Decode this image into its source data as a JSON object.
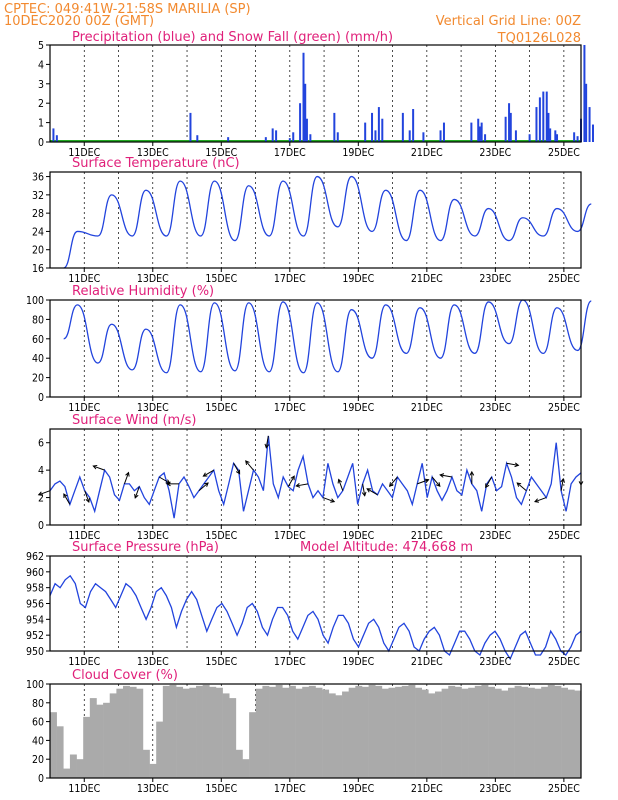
{
  "header": {
    "left_line1": "CPTEC:   049:41W-21:58S   MARILIA (SP)",
    "left_line2": "10DEC2020 00Z (GMT)",
    "right_line1": "Vertical Grid Line: 00Z",
    "right_line2": "TQ0126L028"
  },
  "colors": {
    "blue": "#2244dd",
    "green": "#22aa22",
    "gray": "#aaaaaa",
    "magenta": "#e0207a",
    "orange": "#f28a30"
  },
  "chart_data": [
    {
      "type": "bar",
      "title": "Precipitation (blue) and Snow Fall (green) (mm/h)",
      "x_labels": [
        "11DEC",
        "13DEC",
        "15DEC",
        "17DEC",
        "19DEC",
        "21DEC",
        "23DEC",
        "25DEC"
      ],
      "yticks": [
        "0",
        "1",
        "2",
        "3",
        "4",
        "5"
      ],
      "ylim": [
        0,
        5
      ],
      "series": [
        {
          "color": "blue",
          "points": [
            [
              0.1,
              0.7
            ],
            [
              0.2,
              0.35
            ],
            [
              4.1,
              1.5
            ],
            [
              4.3,
              0.35
            ],
            [
              5.2,
              0.25
            ],
            [
              6.3,
              0.25
            ],
            [
              6.5,
              0.7
            ],
            [
              6.6,
              0.6
            ],
            [
              7.0,
              0.2
            ],
            [
              7.1,
              0.5
            ],
            [
              7.3,
              2.0
            ],
            [
              7.4,
              4.6
            ],
            [
              7.45,
              3.0
            ],
            [
              7.5,
              1.2
            ],
            [
              7.6,
              0.4
            ],
            [
              8.3,
              1.5
            ],
            [
              8.4,
              0.5
            ],
            [
              9.2,
              1.0
            ],
            [
              9.4,
              1.5
            ],
            [
              9.5,
              0.6
            ],
            [
              9.6,
              1.8
            ],
            [
              9.7,
              1.2
            ],
            [
              10.3,
              1.5
            ],
            [
              10.5,
              0.6
            ],
            [
              10.6,
              1.7
            ],
            [
              10.9,
              0.5
            ],
            [
              11.4,
              0.6
            ],
            [
              11.5,
              1.0
            ],
            [
              12.3,
              1.0
            ],
            [
              12.5,
              1.2
            ],
            [
              12.55,
              0.8
            ],
            [
              12.6,
              1.0
            ],
            [
              12.7,
              0.4
            ],
            [
              13.3,
              1.3
            ],
            [
              13.4,
              2.0
            ],
            [
              13.45,
              1.5
            ],
            [
              13.6,
              0.6
            ],
            [
              14.0,
              0.4
            ],
            [
              14.2,
              1.8
            ],
            [
              14.3,
              2.3
            ],
            [
              14.4,
              2.6
            ],
            [
              14.5,
              2.6
            ],
            [
              14.55,
              1.5
            ],
            [
              14.6,
              0.7
            ],
            [
              14.75,
              0.6
            ],
            [
              14.8,
              0.4
            ],
            [
              15.3,
              0.5
            ],
            [
              15.4,
              0.3
            ],
            [
              15.5,
              1.2
            ],
            [
              15.6,
              5.0
            ],
            [
              15.65,
              3.0
            ],
            [
              15.75,
              1.8
            ],
            [
              15.85,
              0.9
            ]
          ]
        },
        {
          "color": "green",
          "points": []
        }
      ]
    },
    {
      "type": "line",
      "title": "Surface Temperature (nC)",
      "x_labels": [
        "11DEC",
        "13DEC",
        "15DEC",
        "17DEC",
        "19DEC",
        "21DEC",
        "23DEC",
        "25DEC"
      ],
      "yticks": [
        "16",
        "20",
        "24",
        "28",
        "32",
        "36"
      ],
      "ylim": [
        16,
        37
      ],
      "series": [
        {
          "color": "blue",
          "min": [
            16,
            23,
            23,
            23,
            23,
            22,
            23,
            23,
            25,
            24,
            22,
            22,
            23,
            22,
            23,
            24
          ],
          "max": [
            24,
            32,
            33,
            35,
            35,
            34,
            35,
            36,
            36,
            33,
            33,
            31,
            29,
            27,
            29,
            30
          ]
        }
      ]
    },
    {
      "type": "line",
      "title": "Relative Humidity (%)",
      "x_labels": [
        "11DEC",
        "13DEC",
        "15DEC",
        "17DEC",
        "19DEC",
        "21DEC",
        "23DEC",
        "25DEC"
      ],
      "yticks": [
        "0",
        "20",
        "40",
        "60",
        "80",
        "100"
      ],
      "ylim": [
        0,
        100
      ],
      "series": [
        {
          "color": "blue",
          "min": [
            60,
            35,
            28,
            25,
            26,
            27,
            26,
            25,
            26,
            40,
            45,
            40,
            45,
            55,
            45,
            48
          ],
          "max": [
            95,
            75,
            70,
            95,
            97,
            97,
            98,
            97,
            90,
            95,
            92,
            95,
            98,
            100,
            92,
            99
          ]
        }
      ]
    },
    {
      "type": "line",
      "title": "Surface Wind (m/s)",
      "x_labels": [
        "11DEC",
        "13DEC",
        "15DEC",
        "17DEC",
        "19DEC",
        "21DEC",
        "23DEC",
        "25DEC"
      ],
      "yticks": [
        "0",
        "2",
        "4",
        "6"
      ],
      "ylim": [
        0,
        7
      ],
      "series": [
        {
          "color": "blue",
          "values": [
            2.5,
            3.0,
            3.2,
            2.8,
            1.5,
            2.5,
            3.5,
            2.5,
            2.0,
            1.0,
            2.5,
            4.0,
            3.5,
            2.2,
            1.8,
            3.0,
            3.0,
            2.5,
            2.8,
            2.0,
            1.5,
            2.5,
            3.5,
            3.8,
            2.5,
            0.5,
            3.0,
            3.5,
            2.8,
            2.0,
            2.5,
            3.0,
            3.5,
            4.0,
            2.5,
            1.5,
            3.0,
            4.5,
            4.0,
            1.0,
            2.5,
            4.0,
            3.5,
            2.5,
            6.5,
            3.0,
            2.0,
            3.5,
            2.8,
            2.5,
            4.0,
            5.0,
            3.0,
            2.0,
            2.5,
            2.0,
            4.5,
            3.0,
            2.0,
            2.5,
            3.5,
            4.5,
            1.5,
            3.0,
            4.0,
            2.5,
            2.2,
            3.0,
            2.5,
            2.0,
            3.5,
            3.0,
            2.5,
            1.5,
            3.0,
            4.5,
            2.0,
            3.5,
            2.5,
            1.8,
            2.5,
            3.5,
            2.5,
            2.2,
            4.0,
            3.0,
            2.5,
            1.0,
            3.0,
            3.5,
            2.5,
            2.8,
            4.5,
            3.5,
            2.0,
            1.5,
            2.5,
            3.5,
            3.0,
            2.5,
            2.0,
            3.0,
            6.0,
            2.5,
            1.0,
            3.0,
            3.5,
            3.8
          ]
        }
      ]
    },
    {
      "type": "line",
      "title": "Surface Pressure (hPa)",
      "annotation": "Model Altitude: 474.668 m",
      "x_labels": [
        "11DEC",
        "13DEC",
        "15DEC",
        "17DEC",
        "19DEC",
        "21DEC",
        "23DEC",
        "25DEC"
      ],
      "yticks": [
        "950",
        "952",
        "954",
        "956",
        "958",
        "960",
        "962"
      ],
      "ylim": [
        950,
        962
      ],
      "series": [
        {
          "color": "blue",
          "values": [
            957.0,
            958.5,
            958.0,
            959.0,
            959.5,
            958.5,
            956.0,
            955.5,
            957.5,
            958.5,
            958.0,
            957.5,
            956.5,
            955.5,
            957.0,
            958.5,
            958.0,
            957.0,
            955.5,
            954.0,
            955.5,
            957.5,
            958.0,
            957.0,
            955.5,
            953.0,
            955.0,
            956.5,
            957.5,
            956.5,
            954.5,
            952.5,
            954.0,
            955.5,
            956.0,
            955.0,
            953.5,
            952.0,
            953.5,
            955.5,
            956.0,
            955.0,
            953.0,
            952.0,
            954.0,
            955.5,
            955.5,
            954.5,
            952.5,
            951.5,
            953.0,
            954.5,
            955.0,
            954.0,
            952.0,
            951.0,
            953.0,
            954.5,
            954.5,
            953.5,
            951.5,
            950.5,
            952.0,
            953.5,
            954.0,
            953.0,
            951.0,
            950.0,
            951.5,
            953.0,
            953.5,
            952.5,
            950.5,
            950.0,
            951.5,
            952.5,
            953.0,
            952.0,
            950.0,
            949.5,
            951.0,
            952.5,
            952.5,
            951.5,
            950.0,
            949.5,
            951.0,
            952.0,
            952.5,
            951.5,
            950.0,
            949.0,
            950.5,
            952.0,
            952.5,
            951.0,
            949.5,
            949.5,
            950.5,
            952.5,
            951.5,
            950.0,
            949.5,
            950.5,
            952.0,
            952.5
          ]
        }
      ]
    },
    {
      "type": "bar",
      "title": "Cloud Cover (%)",
      "x_labels": [
        "11DEC",
        "13DEC",
        "15DEC",
        "17DEC",
        "19DEC",
        "21DEC",
        "23DEC",
        "25DEC"
      ],
      "yticks": [
        "0",
        "20",
        "40",
        "60",
        "80",
        "100"
      ],
      "ylim": [
        0,
        100
      ],
      "series": [
        {
          "color": "gray",
          "values": [
            70,
            55,
            10,
            25,
            20,
            65,
            85,
            78,
            80,
            90,
            95,
            98,
            97,
            95,
            30,
            15,
            60,
            98,
            99,
            97,
            95,
            96,
            98,
            99,
            97,
            96,
            90,
            85,
            30,
            20,
            70,
            95,
            98,
            97,
            99,
            96,
            98,
            95,
            97,
            98,
            96,
            94,
            90,
            88,
            92,
            96,
            98,
            97,
            99,
            98,
            95,
            96,
            97,
            98,
            99,
            96,
            94,
            90,
            92,
            95,
            98,
            97,
            95,
            96,
            98,
            99,
            97,
            95,
            93,
            96,
            98,
            97,
            96,
            95,
            97,
            99,
            98,
            96,
            94,
            93
          ]
        }
      ]
    }
  ]
}
